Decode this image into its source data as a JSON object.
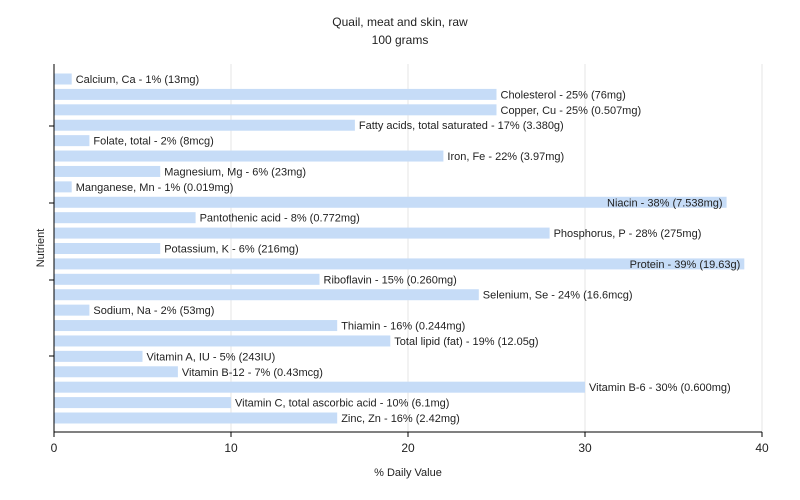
{
  "chart_data": {
    "type": "bar",
    "orientation": "horizontal",
    "title": "Quail, meat and skin, raw",
    "subtitle": "100 grams",
    "xlabel": "% Daily Value",
    "ylabel": "Nutrient",
    "xlim": [
      0,
      40
    ],
    "xticks": [
      0,
      10,
      20,
      30,
      40
    ],
    "grid": true,
    "bar_color": "#c6dcf7",
    "categories": [
      "Calcium, Ca",
      "Cholesterol",
      "Copper, Cu",
      "Fatty acids, total saturated",
      "Folate, total",
      "Iron, Fe",
      "Magnesium, Mg",
      "Manganese, Mn",
      "Niacin",
      "Pantothenic acid",
      "Phosphorus, P",
      "Potassium, K",
      "Protein",
      "Riboflavin",
      "Selenium, Se",
      "Sodium, Na",
      "Thiamin",
      "Total lipid (fat)",
      "Vitamin A, IU",
      "Vitamin B-12",
      "Vitamin B-6",
      "Vitamin C, total ascorbic acid",
      "Zinc, Zn"
    ],
    "values": [
      1,
      25,
      25,
      17,
      2,
      22,
      6,
      1,
      38,
      8,
      28,
      6,
      39,
      15,
      24,
      2,
      16,
      19,
      5,
      7,
      30,
      10,
      16
    ],
    "labels": [
      "Calcium, Ca - 1% (13mg)",
      "Cholesterol - 25% (76mg)",
      "Copper, Cu - 25% (0.507mg)",
      "Fatty acids, total saturated - 17% (3.380g)",
      "Folate, total - 2% (8mcg)",
      "Iron, Fe - 22% (3.97mg)",
      "Magnesium, Mg - 6% (23mg)",
      "Manganese, Mn - 1% (0.019mg)",
      "Niacin - 38% (7.538mg)",
      "Pantothenic acid - 8% (0.772mg)",
      "Phosphorus, P - 28% (275mg)",
      "Potassium, K - 6% (216mg)",
      "Protein - 39% (19.63g)",
      "Riboflavin - 15% (0.260mg)",
      "Selenium, Se - 24% (16.6mcg)",
      "Sodium, Na - 2% (53mg)",
      "Thiamin - 16% (0.244mg)",
      "Total lipid (fat) - 19% (12.05g)",
      "Vitamin A, IU - 5% (243IU)",
      "Vitamin B-12 - 7% (0.43mcg)",
      "Vitamin B-6 - 30% (0.600mg)",
      "Vitamin C, total ascorbic acid - 10% (6.1mg)",
      "Zinc, Zn - 16% (2.42mg)"
    ]
  }
}
